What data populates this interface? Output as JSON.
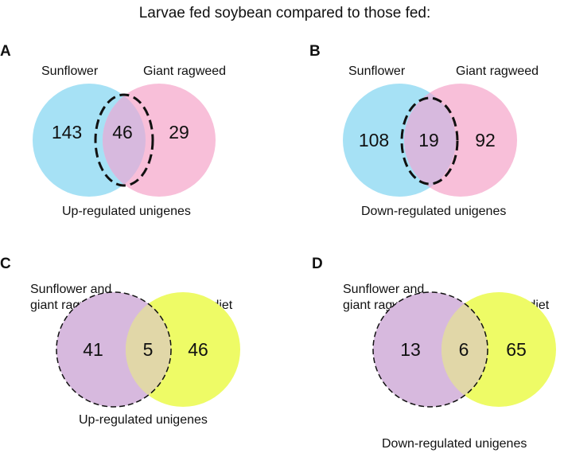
{
  "title": "Larvae fed soybean compared to those fed:",
  "panels": [
    {
      "letter": "A",
      "left_label": "Sunflower",
      "right_label": "Giant ragweed",
      "left_only": "143",
      "overlap": "46",
      "right_only": "29",
      "caption": "Up-regulated unigenes"
    },
    {
      "letter": "B",
      "left_label": "Sunflower",
      "right_label": "Giant ragweed",
      "left_only": "108",
      "overlap": "19",
      "right_only": "92",
      "caption": "Down-regulated unigenes"
    },
    {
      "letter": "C",
      "left_label_line1": "Sunflower and",
      "left_label_line2": "giant ragweed",
      "right_label": "Artificial diet",
      "left_only": "41",
      "overlap": "5",
      "right_only": "46",
      "caption": "Up-regulated unigenes"
    },
    {
      "letter": "D",
      "left_label_line1": "Sunflower and",
      "left_label_line2": "giant ragweed",
      "right_label": "Artificial diet",
      "left_only": "13",
      "overlap": "6",
      "right_only": "65",
      "caption": "Down-regulated unigenes"
    }
  ],
  "colors": {
    "sunflower": "#a6e1f5",
    "giant_ragweed": "#f8bfd9",
    "combined": "#d7b9de",
    "artificial_diet": "#eefb66",
    "outline": "#111111"
  }
}
